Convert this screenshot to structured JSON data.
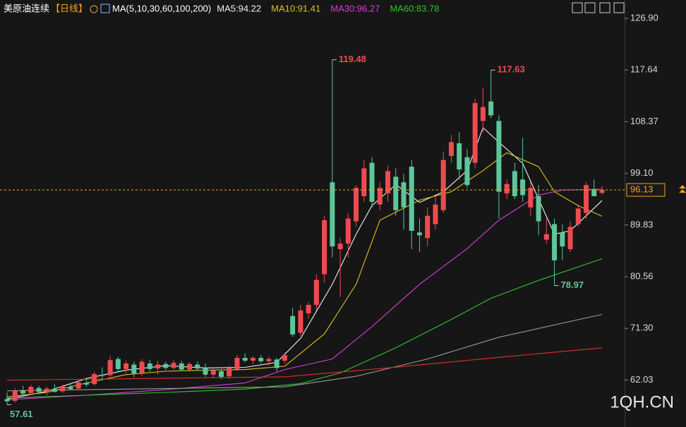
{
  "chart_data": {
    "type": "candlestick",
    "title": "美原油连续",
    "period": "【日线】",
    "indicator": "MA(5,10,30,60,100,200)",
    "open": [
      58.6,
      58.3,
      60.2,
      59.7,
      60.6,
      60,
      60.4,
      60,
      60.8,
      60.5,
      61.5,
      61.3,
      63,
      62.9,
      65.8,
      64,
      64.8,
      63.3,
      65,
      64.1,
      64.9,
      64.2,
      65,
      63.9,
      64.8,
      64.2,
      63,
      63.6,
      62.7,
      64,
      66,
      65.5,
      66,
      65.4,
      65.7,
      65.5,
      73.5,
      70.5,
      74,
      75.5,
      81,
      97.5,
      85.5,
      86.5,
      90.5,
      95,
      101,
      93.5,
      95.5,
      98.5,
      97.5,
      100.3,
      88.5,
      87.5,
      90,
      92.5,
      102.2,
      104.5,
      102,
      101,
      108.5,
      112,
      108.5,
      95.5,
      99.5,
      98,
      93,
      95,
      87.2,
      90,
      88.5,
      85.5,
      90,
      92,
      96.3,
      95.6
    ],
    "high": [
      59.8,
      60.6,
      61,
      61.2,
      61,
      60.8,
      61.3,
      61.2,
      61.5,
      62,
      62.4,
      63.5,
      64.3,
      66.3,
      66.2,
      65.5,
      65.3,
      65.8,
      65.7,
      65.5,
      65.3,
      65.6,
      65.5,
      65.2,
      65.4,
      65,
      64.2,
      64,
      64.6,
      66.5,
      66.8,
      66.3,
      66.5,
      66.2,
      66,
      67,
      75,
      75.5,
      76,
      81,
      91.5,
      119.48,
      87.5,
      92,
      97,
      101.5,
      102,
      97.5,
      100.5,
      100,
      99,
      101.5,
      91,
      93,
      95,
      103,
      106,
      106.5,
      103.5,
      112.5,
      114.5,
      117.63,
      109.5,
      98,
      101,
      105.5,
      97.5,
      97,
      91,
      91,
      90,
      90.5,
      93.5,
      97.5,
      98,
      96.8
    ],
    "low": [
      57.61,
      58,
      59.2,
      59.4,
      59.5,
      59.3,
      59.8,
      59.7,
      60.2,
      60.2,
      60.8,
      61,
      62.3,
      62.6,
      63.5,
      63.2,
      62.5,
      62.8,
      63.5,
      63,
      63.8,
      63.9,
      63.6,
      63.5,
      63.8,
      62.6,
      62.4,
      62.2,
      62.3,
      63.6,
      65.2,
      64.8,
      65,
      64.6,
      63.6,
      65,
      69.8,
      70,
      73,
      74.5,
      79.5,
      84,
      77,
      84,
      89.5,
      94,
      93,
      92.5,
      94,
      91.5,
      89,
      85.5,
      85,
      86,
      89,
      92,
      101,
      98,
      96.5,
      100,
      106.5,
      109,
      91,
      94.5,
      94.5,
      94,
      91.5,
      88,
      86.5,
      78.97,
      83.5,
      85,
      89.5,
      91,
      95,
      95.3
    ],
    "close": [
      58.2,
      60.1,
      59.6,
      60.8,
      59.9,
      60.5,
      59.9,
      60.9,
      60.4,
      61.6,
      61.2,
      63.1,
      62.8,
      65.6,
      64,
      65,
      63.2,
      65.3,
      64,
      64.8,
      64.2,
      65.1,
      63.9,
      64.9,
      64.1,
      63,
      63.8,
      62.6,
      64.2,
      66,
      65.5,
      66,
      65.4,
      65.8,
      64.2,
      66.5,
      70.2,
      74.5,
      75.5,
      80,
      90.7,
      86,
      86.5,
      91,
      96.5,
      100,
      94,
      96.5,
      99.5,
      92.5,
      93,
      88.8,
      88,
      91.5,
      93.5,
      101.5,
      104.7,
      99.8,
      97,
      111.7,
      111,
      109.5,
      95.8,
      97.2,
      95,
      95.2,
      96.5,
      90.5,
      88.2,
      83.5,
      86,
      89.5,
      92.8,
      97,
      95,
      96.13
    ],
    "up_color": "#ee4b4f",
    "down_color": "#5ec59a",
    "series": [
      {
        "name": "MA5:94.22",
        "color": "#f2f2f2",
        "x": [
          0,
          5,
          10,
          15,
          20,
          25,
          30,
          34,
          37,
          41,
          44,
          46,
          49,
          52,
          55,
          58,
          60,
          62,
          65,
          67,
          69,
          71,
          73,
          75
        ],
        "values": [
          58.6,
          60,
          62.3,
          63.8,
          64.6,
          64.2,
          64.3,
          65.2,
          69.5,
          79.2,
          88.2,
          93.3,
          97.1,
          93.9,
          95.8,
          99.6,
          107.3,
          104.7,
          100.9,
          94.5,
          88.2,
          88.8,
          91.5,
          94.22
        ]
      },
      {
        "name": "MA10:91.41",
        "color": "#d8c227",
        "x": [
          0,
          5,
          10,
          15,
          20,
          25,
          30,
          35,
          40,
          44,
          47,
          52,
          56,
          60,
          63,
          67,
          69,
          72,
          75
        ],
        "values": [
          59,
          59.8,
          61.5,
          63,
          63.6,
          63.8,
          63.9,
          64.5,
          70.3,
          79.2,
          90.7,
          94.3,
          95.8,
          99.6,
          102.8,
          100.3,
          95.8,
          93.3,
          91.41
        ]
      },
      {
        "name": "MA30:96.27",
        "color": "#d43fd6",
        "x": [
          0,
          10,
          20,
          30,
          35,
          41,
          46,
          52,
          58,
          62,
          67,
          70,
          75
        ],
        "values": [
          58.5,
          59.3,
          60.3,
          61.5,
          63.9,
          65.8,
          71.6,
          79.2,
          85.6,
          90.7,
          95.2,
          96.1,
          96.27
        ]
      },
      {
        "name": "MA60:83.78",
        "color": "#2fc42f",
        "x": [
          0,
          10,
          20,
          30,
          37,
          42,
          49,
          56,
          61,
          67,
          75
        ],
        "values": [
          58.8,
          59.3,
          59.8,
          60.4,
          61.4,
          63.3,
          67.8,
          72.9,
          76.7,
          79.9,
          83.78
        ]
      },
      {
        "color": "#9a9a9a",
        "x": [
          0,
          15,
          35,
          44,
          53,
          62,
          75
        ],
        "values": [
          60.1,
          60.4,
          60.8,
          62.7,
          65.8,
          69.7,
          73.8
        ]
      },
      {
        "color": "#e0302f",
        "x": [
          0,
          35,
          48,
          62,
          75
        ],
        "values": [
          62,
          62.6,
          64.2,
          66.1,
          67.8
        ]
      }
    ],
    "ylim": [
      53.6,
      130.2
    ],
    "yticks": [
      62.03,
      {
        "value": 71.3,
        "label": "71.30"
      },
      80.56,
      89.83,
      {
        "value": 99.1,
        "label": "99.10"
      },
      108.37,
      117.64,
      {
        "value": 126.9,
        "label": "126.90"
      }
    ],
    "last_price": 96.13,
    "last_color": "#f0a030",
    "annotations": [
      119.48,
      117.63,
      78.97,
      57.61
    ],
    "watermark": "1QH.CN"
  }
}
